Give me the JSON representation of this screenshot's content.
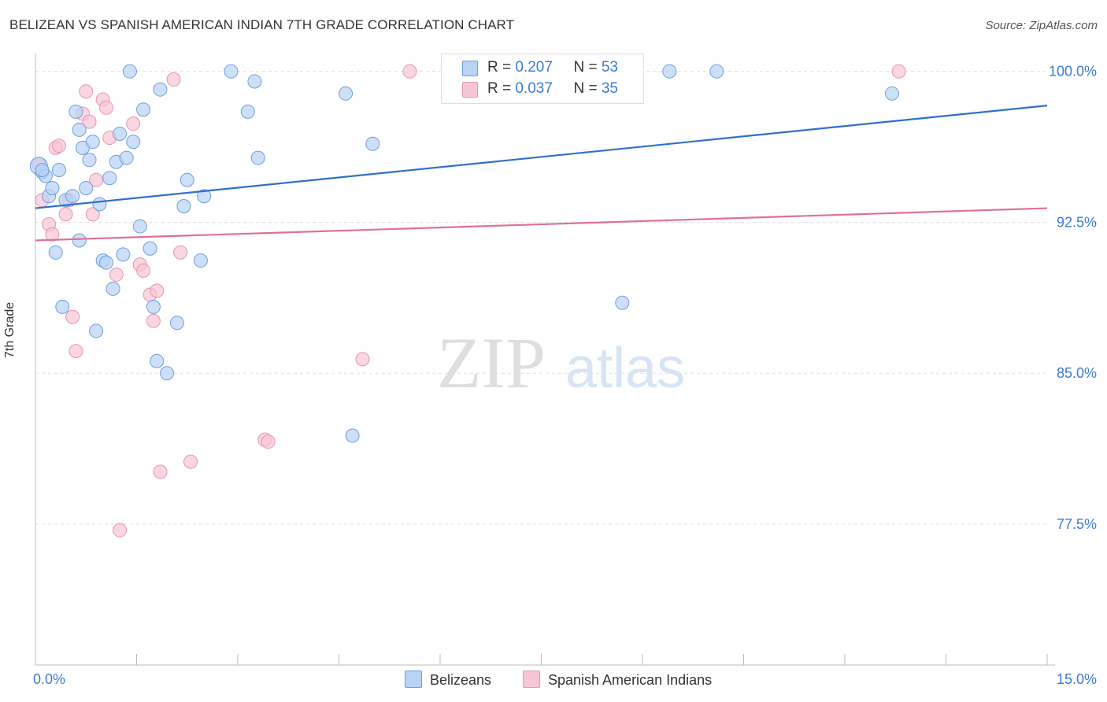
{
  "title": "BELIZEAN VS SPANISH AMERICAN INDIAN 7TH GRADE CORRELATION CHART",
  "source": "Source: ZipAtlas.com",
  "watermark": {
    "zip": "ZIP",
    "atlas": "atlas"
  },
  "legend_top": [
    {
      "r_label": "R = ",
      "r_value": "0.207",
      "n_label": "N = ",
      "n_value": "53"
    },
    {
      "r_label": "R = ",
      "r_value": "0.037",
      "n_label": "N = ",
      "n_value": "35"
    }
  ],
  "legend_bottom": [
    "Belizeans",
    "Spanish American Indians"
  ],
  "colors": {
    "blue_fill": "#b8d3f5",
    "blue_stroke": "#6d9ee0",
    "blue_line": "#2f6fcc",
    "pink_fill": "#f8c5d5",
    "pink_stroke": "#e895b0",
    "pink_line": "#e0709a",
    "tick_text": "#3d7ad6",
    "grid": "#e0e0e0"
  },
  "chart_data": {
    "type": "scatter",
    "title": "BELIZEAN VS SPANISH AMERICAN INDIAN 7TH GRADE CORRELATION CHART",
    "xlabel": "",
    "ylabel": "7th Grade",
    "xlim": [
      0,
      15
    ],
    "ylim": [
      70.5,
      101.2
    ],
    "x_tick_labels": [
      "0.0%",
      "15.0%"
    ],
    "y_ticks": [
      100.0,
      92.5,
      85.0,
      77.5
    ],
    "y_tick_labels": [
      "100.0%",
      "92.5%",
      "85.0%",
      "77.5%"
    ],
    "grid": "horizontal dashed",
    "legend_position": "top-center",
    "series": [
      {
        "name": "Belizeans",
        "color": "#6d9ee0",
        "trend": {
          "x": [
            0,
            15
          ],
          "y": [
            93.2,
            98.3
          ]
        },
        "points": [
          [
            0.05,
            95.3
          ],
          [
            0.1,
            95.0
          ],
          [
            0.15,
            94.8
          ],
          [
            0.2,
            93.8
          ],
          [
            0.25,
            94.2
          ],
          [
            0.3,
            91.0
          ],
          [
            0.35,
            95.1
          ],
          [
            0.45,
            93.6
          ],
          [
            0.4,
            88.3
          ],
          [
            0.55,
            93.8
          ],
          [
            0.6,
            98.0
          ],
          [
            0.65,
            91.6
          ],
          [
            0.65,
            97.1
          ],
          [
            0.7,
            96.2
          ],
          [
            0.75,
            94.2
          ],
          [
            0.8,
            95.6
          ],
          [
            0.85,
            96.5
          ],
          [
            0.9,
            87.1
          ],
          [
            0.95,
            93.4
          ],
          [
            1.0,
            90.6
          ],
          [
            1.05,
            90.5
          ],
          [
            1.1,
            94.7
          ],
          [
            1.15,
            89.2
          ],
          [
            1.2,
            95.5
          ],
          [
            1.25,
            96.9
          ],
          [
            1.3,
            90.9
          ],
          [
            1.35,
            95.7
          ],
          [
            1.4,
            100.0
          ],
          [
            1.45,
            96.5
          ],
          [
            1.55,
            92.3
          ],
          [
            1.6,
            98.1
          ],
          [
            1.7,
            91.2
          ],
          [
            1.75,
            88.3
          ],
          [
            1.8,
            85.6
          ],
          [
            1.85,
            99.1
          ],
          [
            1.95,
            85.0
          ],
          [
            2.1,
            87.5
          ],
          [
            2.2,
            93.3
          ],
          [
            2.25,
            94.6
          ],
          [
            2.45,
            90.6
          ],
          [
            2.5,
            93.8
          ],
          [
            2.9,
            100.0
          ],
          [
            3.15,
            98.0
          ],
          [
            3.25,
            99.5
          ],
          [
            3.3,
            95.7
          ],
          [
            4.6,
            98.9
          ],
          [
            4.7,
            81.9
          ],
          [
            5.0,
            96.4
          ],
          [
            8.7,
            88.5
          ],
          [
            9.4,
            100.0
          ],
          [
            10.1,
            100.0
          ],
          [
            12.7,
            98.9
          ],
          [
            0.1,
            95.1
          ]
        ]
      },
      {
        "name": "Spanish American Indians",
        "color": "#e895b0",
        "trend": {
          "x": [
            0,
            15
          ],
          "y": [
            91.6,
            93.2
          ]
        },
        "points": [
          [
            0.05,
            95.4
          ],
          [
            0.1,
            93.6
          ],
          [
            0.2,
            92.4
          ],
          [
            0.25,
            91.9
          ],
          [
            0.3,
            96.2
          ],
          [
            0.35,
            96.3
          ],
          [
            0.45,
            92.9
          ],
          [
            0.5,
            93.6
          ],
          [
            0.55,
            87.8
          ],
          [
            0.6,
            86.1
          ],
          [
            0.7,
            97.9
          ],
          [
            0.75,
            99.0
          ],
          [
            0.8,
            97.5
          ],
          [
            0.85,
            92.9
          ],
          [
            0.9,
            94.6
          ],
          [
            1.0,
            98.6
          ],
          [
            1.05,
            98.2
          ],
          [
            1.1,
            96.7
          ],
          [
            1.2,
            89.9
          ],
          [
            1.25,
            77.2
          ],
          [
            1.45,
            97.4
          ],
          [
            1.55,
            90.4
          ],
          [
            1.6,
            90.1
          ],
          [
            1.7,
            88.9
          ],
          [
            1.75,
            87.6
          ],
          [
            1.8,
            89.1
          ],
          [
            1.85,
            80.1
          ],
          [
            2.05,
            99.6
          ],
          [
            2.15,
            91.0
          ],
          [
            2.3,
            80.6
          ],
          [
            3.4,
            81.7
          ],
          [
            3.45,
            81.6
          ],
          [
            4.85,
            85.7
          ],
          [
            5.55,
            100.0
          ],
          [
            12.8,
            100.0
          ]
        ]
      }
    ]
  }
}
